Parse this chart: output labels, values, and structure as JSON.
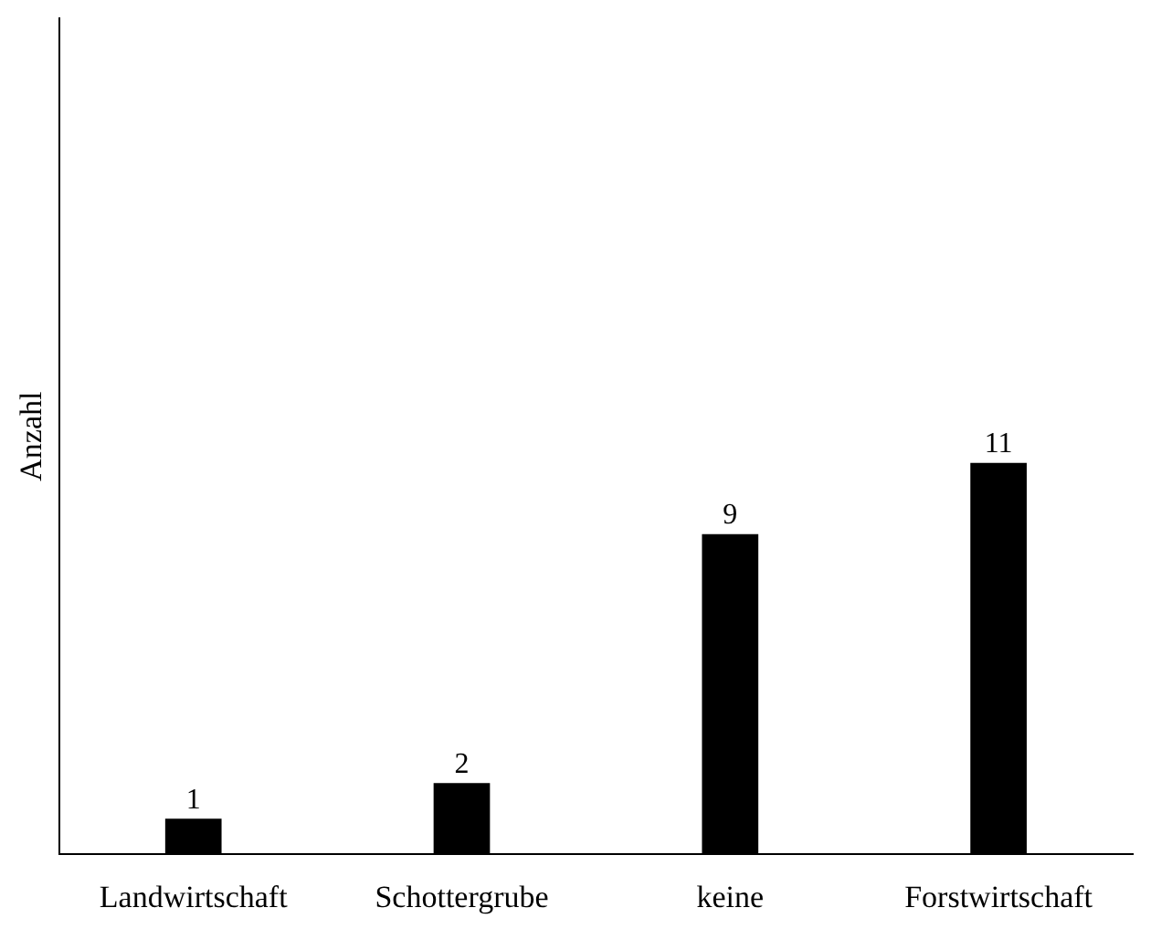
{
  "chart_data": {
    "type": "bar",
    "ylabel": "Anzahl",
    "categories": [
      "Landwirtschaft",
      "Schottergrube",
      "keine",
      "Forstwirtschaft"
    ],
    "values": [
      1,
      2,
      9,
      11
    ],
    "color": "#000000",
    "ylim": [
      0,
      23.5
    ],
    "data_labels": true,
    "grid": false,
    "legend": false,
    "tick_labels": "x"
  }
}
